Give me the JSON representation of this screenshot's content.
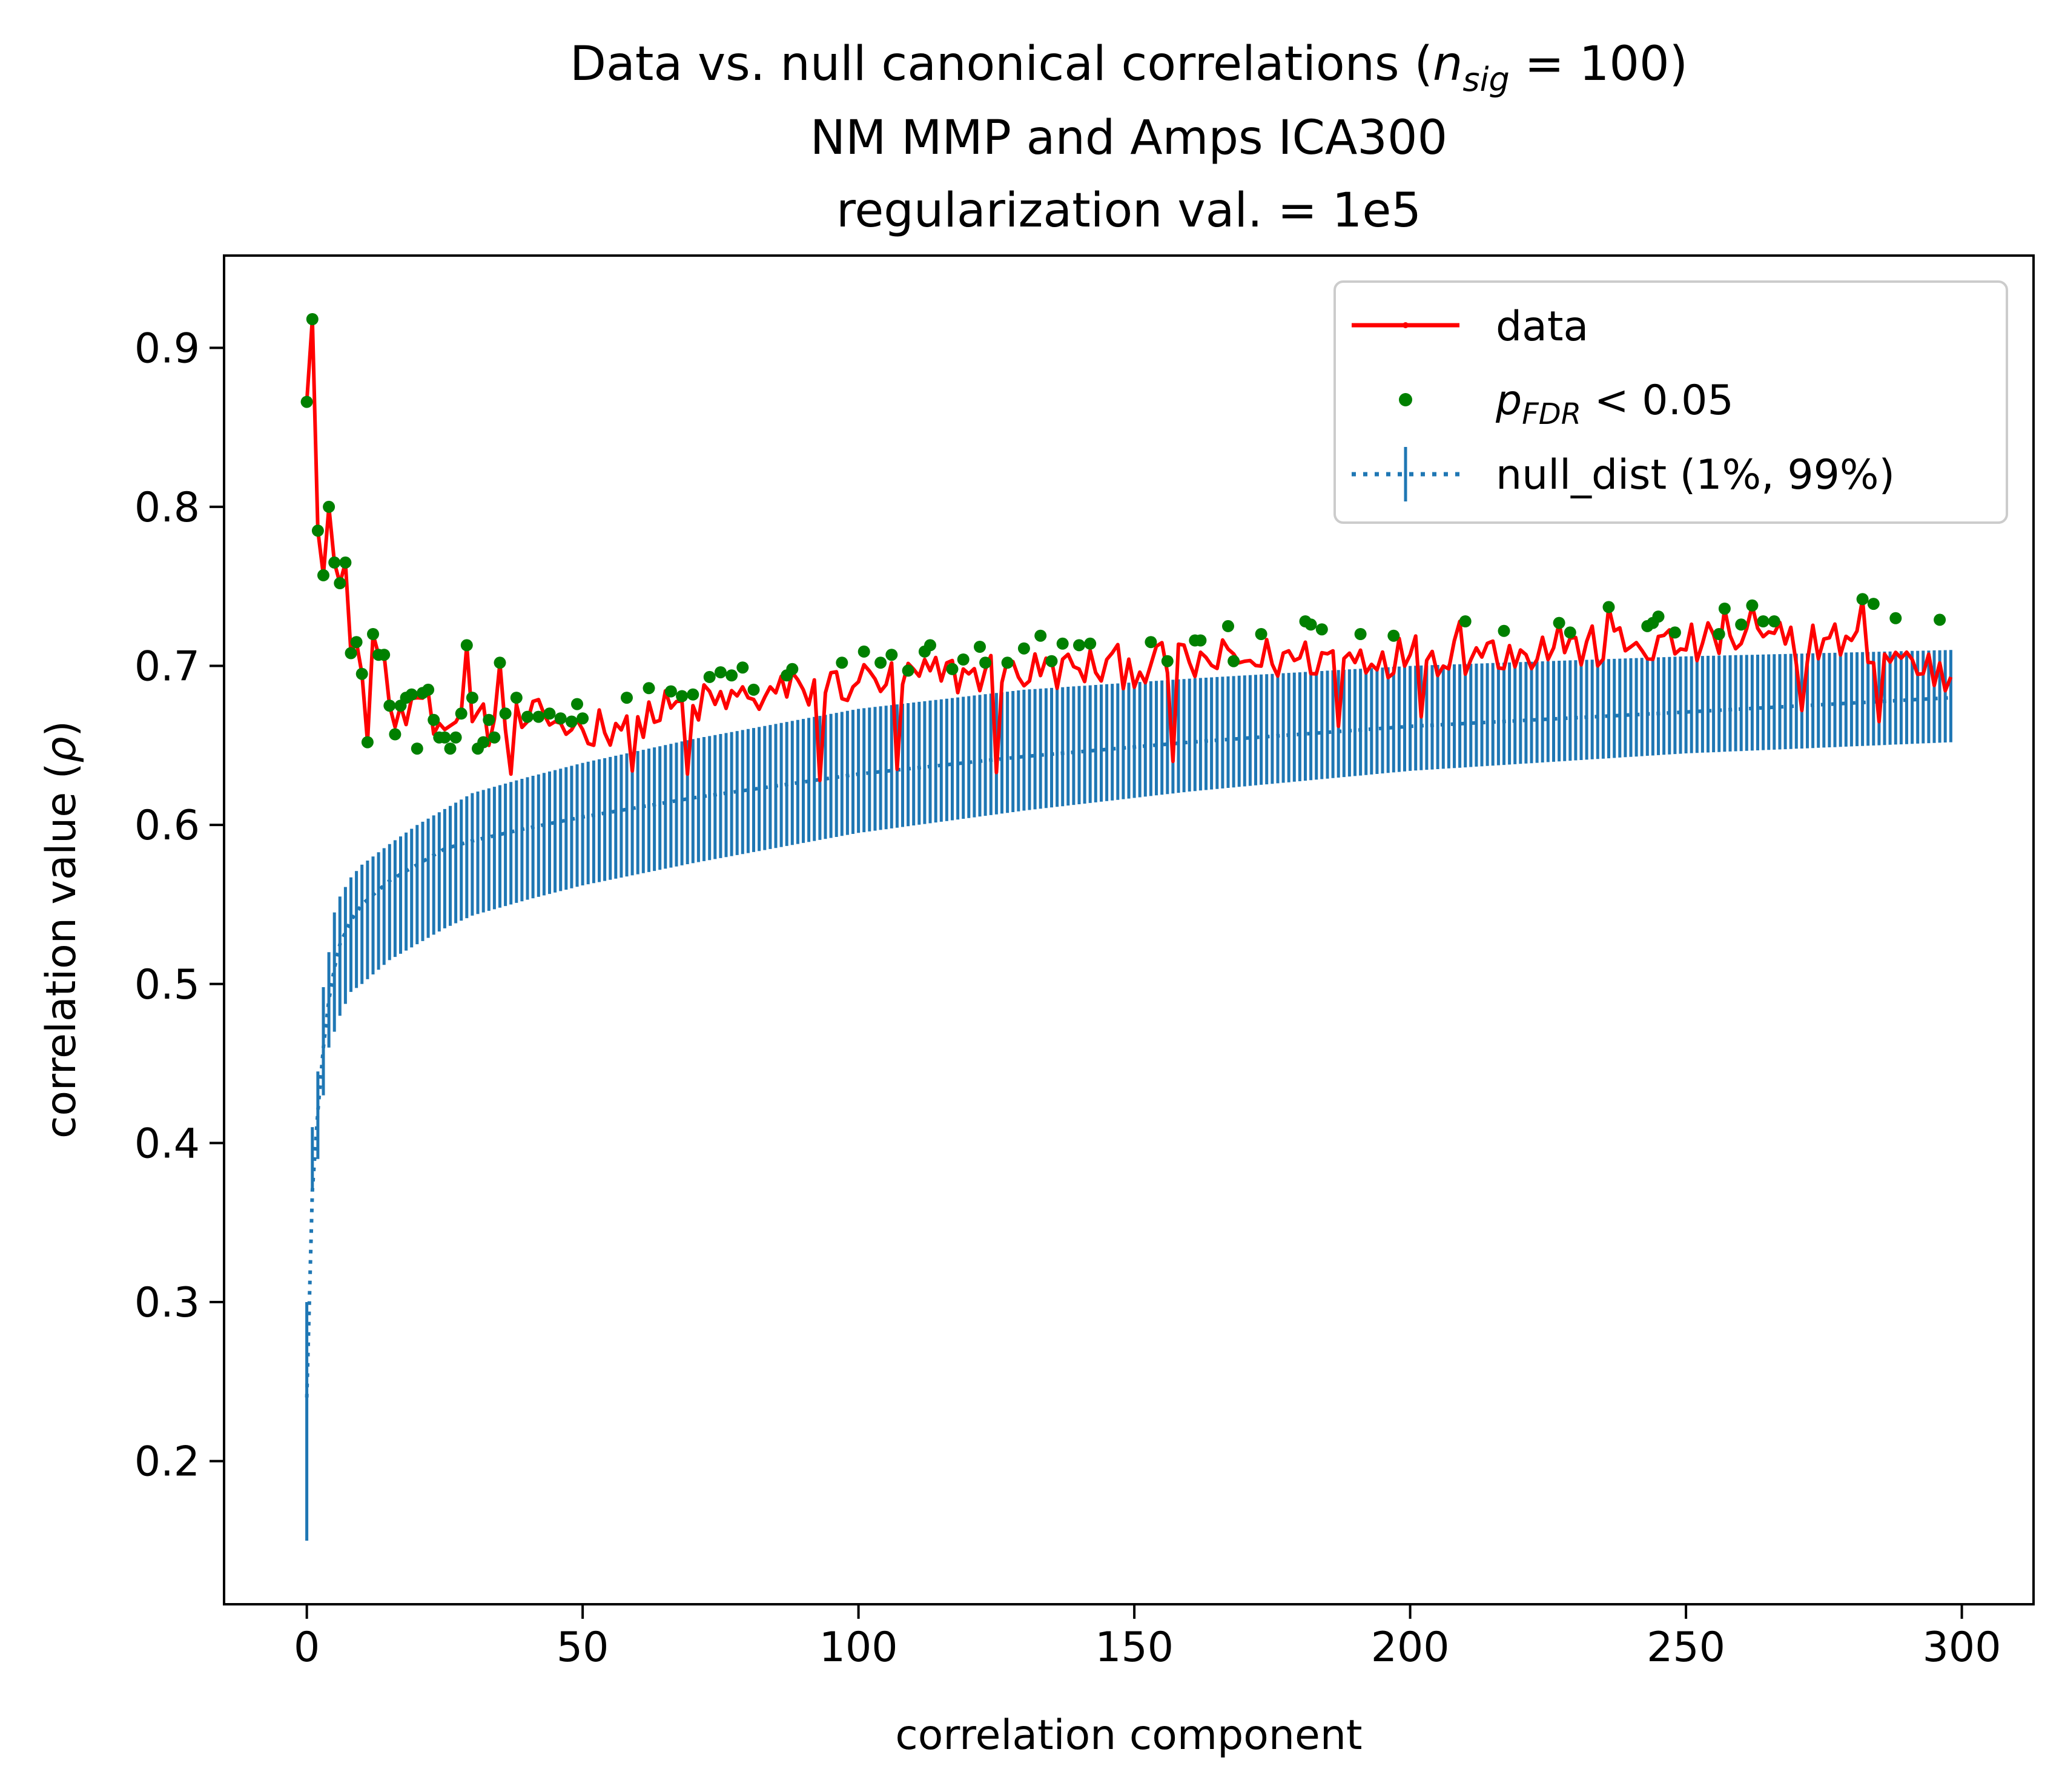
{
  "chart_data": {
    "type": "line",
    "title": {
      "line1_pre": "Data vs. null canonical correlations (",
      "line1_var": "n",
      "line1_sub": "sig",
      "line1_post": " = 100)",
      "line2": "NM MMP and Amps ICA300",
      "line3": "regularization val. = 1e5"
    },
    "xlabel": "correlation component",
    "ylabel_pre": "correlation value (",
    "ylabel_sym": "ρ",
    "ylabel_post": ")",
    "xlim": [
      -15,
      313
    ],
    "ylim": [
      0.11,
      0.958
    ],
    "xticks": [
      0,
      50,
      100,
      150,
      200,
      250,
      300
    ],
    "yticks": [
      0.2,
      0.3,
      0.4,
      0.5,
      0.6,
      0.7,
      0.8,
      0.9
    ],
    "grid": false,
    "legend_position": "top-right",
    "legend": {
      "data": "data",
      "sig_var": "p",
      "sig_sub": "FDR",
      "sig_post": " < 0.05",
      "null": "null_dist (1%, 99%)"
    },
    "colors": {
      "data": "#ff0000",
      "significant": "#008000",
      "null": "#1f77b4"
    },
    "n_components": 299,
    "data_anchors": {
      "x": [
        0,
        1,
        2,
        3,
        4,
        5,
        6,
        7,
        8,
        9,
        10,
        11,
        12,
        13,
        14,
        15,
        17,
        20,
        25,
        30,
        35,
        40,
        45,
        50,
        60,
        70,
        80,
        90,
        100,
        120,
        140,
        160,
        180,
        200,
        220,
        240,
        260,
        280,
        298
      ],
      "y": [
        0.866,
        0.918,
        0.785,
        0.757,
        0.8,
        0.765,
        0.752,
        0.765,
        0.708,
        0.715,
        0.695,
        0.652,
        0.72,
        0.707,
        0.707,
        0.675,
        0.675,
        0.68,
        0.66,
        0.665,
        0.66,
        0.665,
        0.665,
        0.66,
        0.668,
        0.675,
        0.68,
        0.685,
        0.69,
        0.695,
        0.698,
        0.702,
        0.705,
        0.707,
        0.71,
        0.712,
        0.714,
        0.716,
        0.693
      ]
    },
    "data_spikes": [
      {
        "x": 29,
        "y": 0.713
      },
      {
        "x": 35,
        "y": 0.702
      },
      {
        "x": 37,
        "y": 0.632
      },
      {
        "x": 59,
        "y": 0.634
      },
      {
        "x": 69,
        "y": 0.632
      },
      {
        "x": 93,
        "y": 0.628
      },
      {
        "x": 107,
        "y": 0.635
      },
      {
        "x": 125,
        "y": 0.633
      },
      {
        "x": 157,
        "y": 0.64
      },
      {
        "x": 187,
        "y": 0.662
      },
      {
        "x": 202,
        "y": 0.668
      },
      {
        "x": 209,
        "y": 0.728
      },
      {
        "x": 227,
        "y": 0.727
      },
      {
        "x": 236,
        "y": 0.737
      },
      {
        "x": 257,
        "y": 0.736
      },
      {
        "x": 262,
        "y": 0.738
      },
      {
        "x": 271,
        "y": 0.672
      },
      {
        "x": 282,
        "y": 0.742
      },
      {
        "x": 285,
        "y": 0.665
      }
    ],
    "significant_anchors": {
      "x": [
        0,
        1,
        2,
        3,
        4,
        5,
        6,
        7,
        8,
        9,
        10,
        11,
        12,
        13,
        14,
        15,
        16,
        17,
        18,
        19,
        20,
        21,
        22,
        23,
        24,
        25,
        26,
        27,
        28,
        29,
        30,
        31,
        32,
        33,
        34,
        35,
        36,
        38,
        40,
        42,
        44,
        46,
        48,
        49,
        50,
        58,
        62,
        66,
        68,
        70,
        73,
        75,
        77,
        79,
        81,
        87,
        88,
        97,
        101,
        104,
        106,
        109,
        112,
        113,
        117,
        119,
        122,
        123,
        127,
        130,
        133,
        135,
        137,
        140,
        142,
        153,
        156,
        161,
        162,
        167,
        168,
        173,
        181,
        182,
        184,
        191,
        197,
        210,
        217,
        227,
        229,
        236,
        243,
        244,
        245,
        248,
        256,
        257,
        260,
        262,
        264,
        266,
        282,
        284,
        288,
        296
      ],
      "y": [
        0.866,
        0.918,
        0.785,
        0.757,
        0.8,
        0.765,
        0.752,
        0.765,
        0.708,
        0.715,
        0.695,
        0.652,
        0.72,
        0.707,
        0.707,
        0.675,
        0.657,
        0.675,
        0.68,
        0.682,
        0.648,
        0.683,
        0.685,
        0.666,
        0.655,
        0.655,
        0.648,
        0.655,
        0.67,
        0.713,
        0.68,
        0.648,
        0.652,
        0.666,
        0.655,
        0.702,
        0.67,
        0.68,
        0.668,
        0.668,
        0.67,
        0.667,
        0.665,
        0.676,
        0.667,
        0.68,
        0.686,
        0.684,
        0.681,
        0.682,
        0.693,
        0.696,
        0.694,
        0.699,
        0.685,
        0.694,
        0.698,
        0.702,
        0.709,
        0.702,
        0.707,
        0.697,
        0.709,
        0.713,
        0.698,
        0.704,
        0.712,
        0.702,
        0.702,
        0.711,
        0.719,
        0.703,
        0.714,
        0.713,
        0.714,
        0.715,
        0.703,
        0.716,
        0.716,
        0.725,
        0.703,
        0.72,
        0.728,
        0.726,
        0.723,
        0.72,
        0.719,
        0.728,
        0.722,
        0.727,
        0.721,
        0.737,
        0.725,
        0.727,
        0.731,
        0.721,
        0.72,
        0.736,
        0.726,
        0.738,
        0.728,
        0.728,
        0.742,
        0.739,
        0.73,
        0.729
      ]
    },
    "null_median": {
      "x": [
        0,
        1,
        2,
        3,
        4,
        5,
        6,
        8,
        10,
        15,
        20,
        25,
        30,
        40,
        50,
        70,
        100,
        130,
        160,
        200,
        250,
        298
      ],
      "y": [
        0.24,
        0.37,
        0.42,
        0.46,
        0.49,
        0.51,
        0.525,
        0.54,
        0.55,
        0.565,
        0.575,
        0.585,
        0.59,
        0.598,
        0.605,
        0.617,
        0.632,
        0.643,
        0.652,
        0.662,
        0.671,
        0.68
      ]
    },
    "null_p01": {
      "x": [
        0,
        1,
        2,
        3,
        4,
        5,
        6,
        8,
        10,
        15,
        20,
        25,
        30,
        40,
        50,
        70,
        100,
        130,
        160,
        200,
        250,
        298
      ],
      "y": [
        0.15,
        0.37,
        0.39,
        0.43,
        0.46,
        0.47,
        0.48,
        0.495,
        0.5,
        0.515,
        0.525,
        0.535,
        0.543,
        0.553,
        0.562,
        0.576,
        0.595,
        0.609,
        0.621,
        0.634,
        0.645,
        0.652
      ]
    },
    "null_p99": {
      "x": [
        0,
        1,
        2,
        3,
        4,
        5,
        6,
        8,
        10,
        15,
        20,
        25,
        30,
        40,
        50,
        70,
        100,
        130,
        160,
        200,
        250,
        298
      ],
      "y": [
        0.3,
        0.41,
        0.445,
        0.498,
        0.52,
        0.545,
        0.555,
        0.567,
        0.575,
        0.588,
        0.6,
        0.61,
        0.62,
        0.63,
        0.639,
        0.654,
        0.673,
        0.685,
        0.692,
        0.7,
        0.706,
        0.71
      ]
    }
  }
}
